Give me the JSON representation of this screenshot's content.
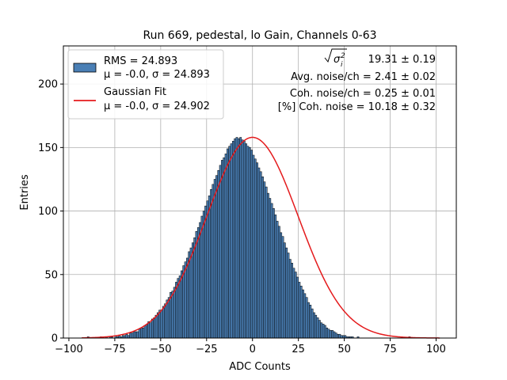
{
  "chart_data": {
    "type": "bar",
    "title": "Run 669, pedestal, lo Gain, Channels 0-63",
    "xlabel": "ADC Counts",
    "ylabel": "Entries",
    "xlim": [
      -103,
      111
    ],
    "ylim": [
      0,
      230
    ],
    "xticks": [
      -100,
      -75,
      -50,
      -25,
      0,
      25,
      50,
      75,
      100
    ],
    "xtick_labels": [
      "−100",
      "−75",
      "−50",
      "−25",
      "0",
      "25",
      "50",
      "75",
      "100"
    ],
    "yticks": [
      0,
      50,
      100,
      150,
      200
    ],
    "ytick_labels": [
      "0",
      "50",
      "100",
      "150",
      "200"
    ],
    "grid": true,
    "legend_position": "upper-left",
    "legend": [
      {
        "line1": "RMS = 24.893",
        "line2": "μ = -0.0, σ = 24.893",
        "kind": "patch",
        "color": "#4a7fb5"
      },
      {
        "line1": "Gaussian Fit",
        "line2": "μ = -0.0, σ = 24.902",
        "kind": "line",
        "color": "#e41a1c"
      }
    ],
    "annotations": [
      "19.31 ± 0.19",
      "Avg. noise/ch = 2.41 ± 0.02",
      "Coh. noise/ch = 0.25 ± 0.01",
      "[%] Coh. noise = 10.18 ± 0.32"
    ],
    "histogram": {
      "bin_start": -90,
      "bin_width": 1,
      "values": [
        1,
        0,
        0,
        0,
        0,
        0,
        0,
        1,
        0,
        0,
        1,
        0,
        1,
        1,
        0,
        2,
        1,
        2,
        1,
        2,
        2,
        3,
        2,
        4,
        4,
        5,
        5,
        5,
        7,
        8,
        8,
        10,
        11,
        13,
        12,
        15,
        16,
        18,
        20,
        22,
        22,
        25,
        27,
        30,
        32,
        36,
        37,
        40,
        44,
        47,
        49,
        53,
        57,
        60,
        63,
        68,
        71,
        75,
        79,
        84,
        87,
        91,
        96,
        100,
        104,
        108,
        112,
        117,
        121,
        125,
        128,
        132,
        136,
        140,
        142,
        145,
        149,
        151,
        153,
        155,
        157,
        158,
        157,
        158,
        156,
        155,
        153,
        151,
        150,
        148,
        144,
        141,
        138,
        134,
        131,
        127,
        123,
        119,
        114,
        110,
        106,
        102,
        97,
        92,
        88,
        83,
        80,
        75,
        71,
        67,
        62,
        59,
        55,
        52,
        48,
        44,
        41,
        38,
        35,
        32,
        28,
        26,
        23,
        20,
        18,
        16,
        14,
        12,
        11,
        10,
        8,
        7,
        6,
        6,
        5,
        4,
        3,
        3,
        2,
        2,
        2,
        1,
        1,
        1,
        1,
        0,
        0,
        1,
        0,
        0,
        0,
        0,
        0,
        0,
        0,
        0,
        0,
        0,
        0,
        0,
        0,
        0,
        0,
        0,
        0,
        0,
        0,
        0,
        0,
        0,
        0,
        0,
        0,
        0,
        0,
        1,
        0,
        0,
        0,
        0,
        0,
        0,
        0,
        0,
        0,
        0,
        0,
        0,
        0,
        0,
        0,
        0,
        0,
        0,
        0,
        0,
        0,
        0,
        0,
        0,
        0,
        0,
        0,
        0,
        0,
        0,
        0,
        0,
        0,
        0,
        0,
        0,
        0,
        0
      ]
    },
    "series": [
      {
        "name": "RMS = 24.893",
        "values": "histogram"
      },
      {
        "name": "Gaussian Fit",
        "mu": -0.0,
        "sigma": 24.902,
        "amplitude": 158,
        "x_range": [
          -93,
          102
        ]
      }
    ]
  }
}
